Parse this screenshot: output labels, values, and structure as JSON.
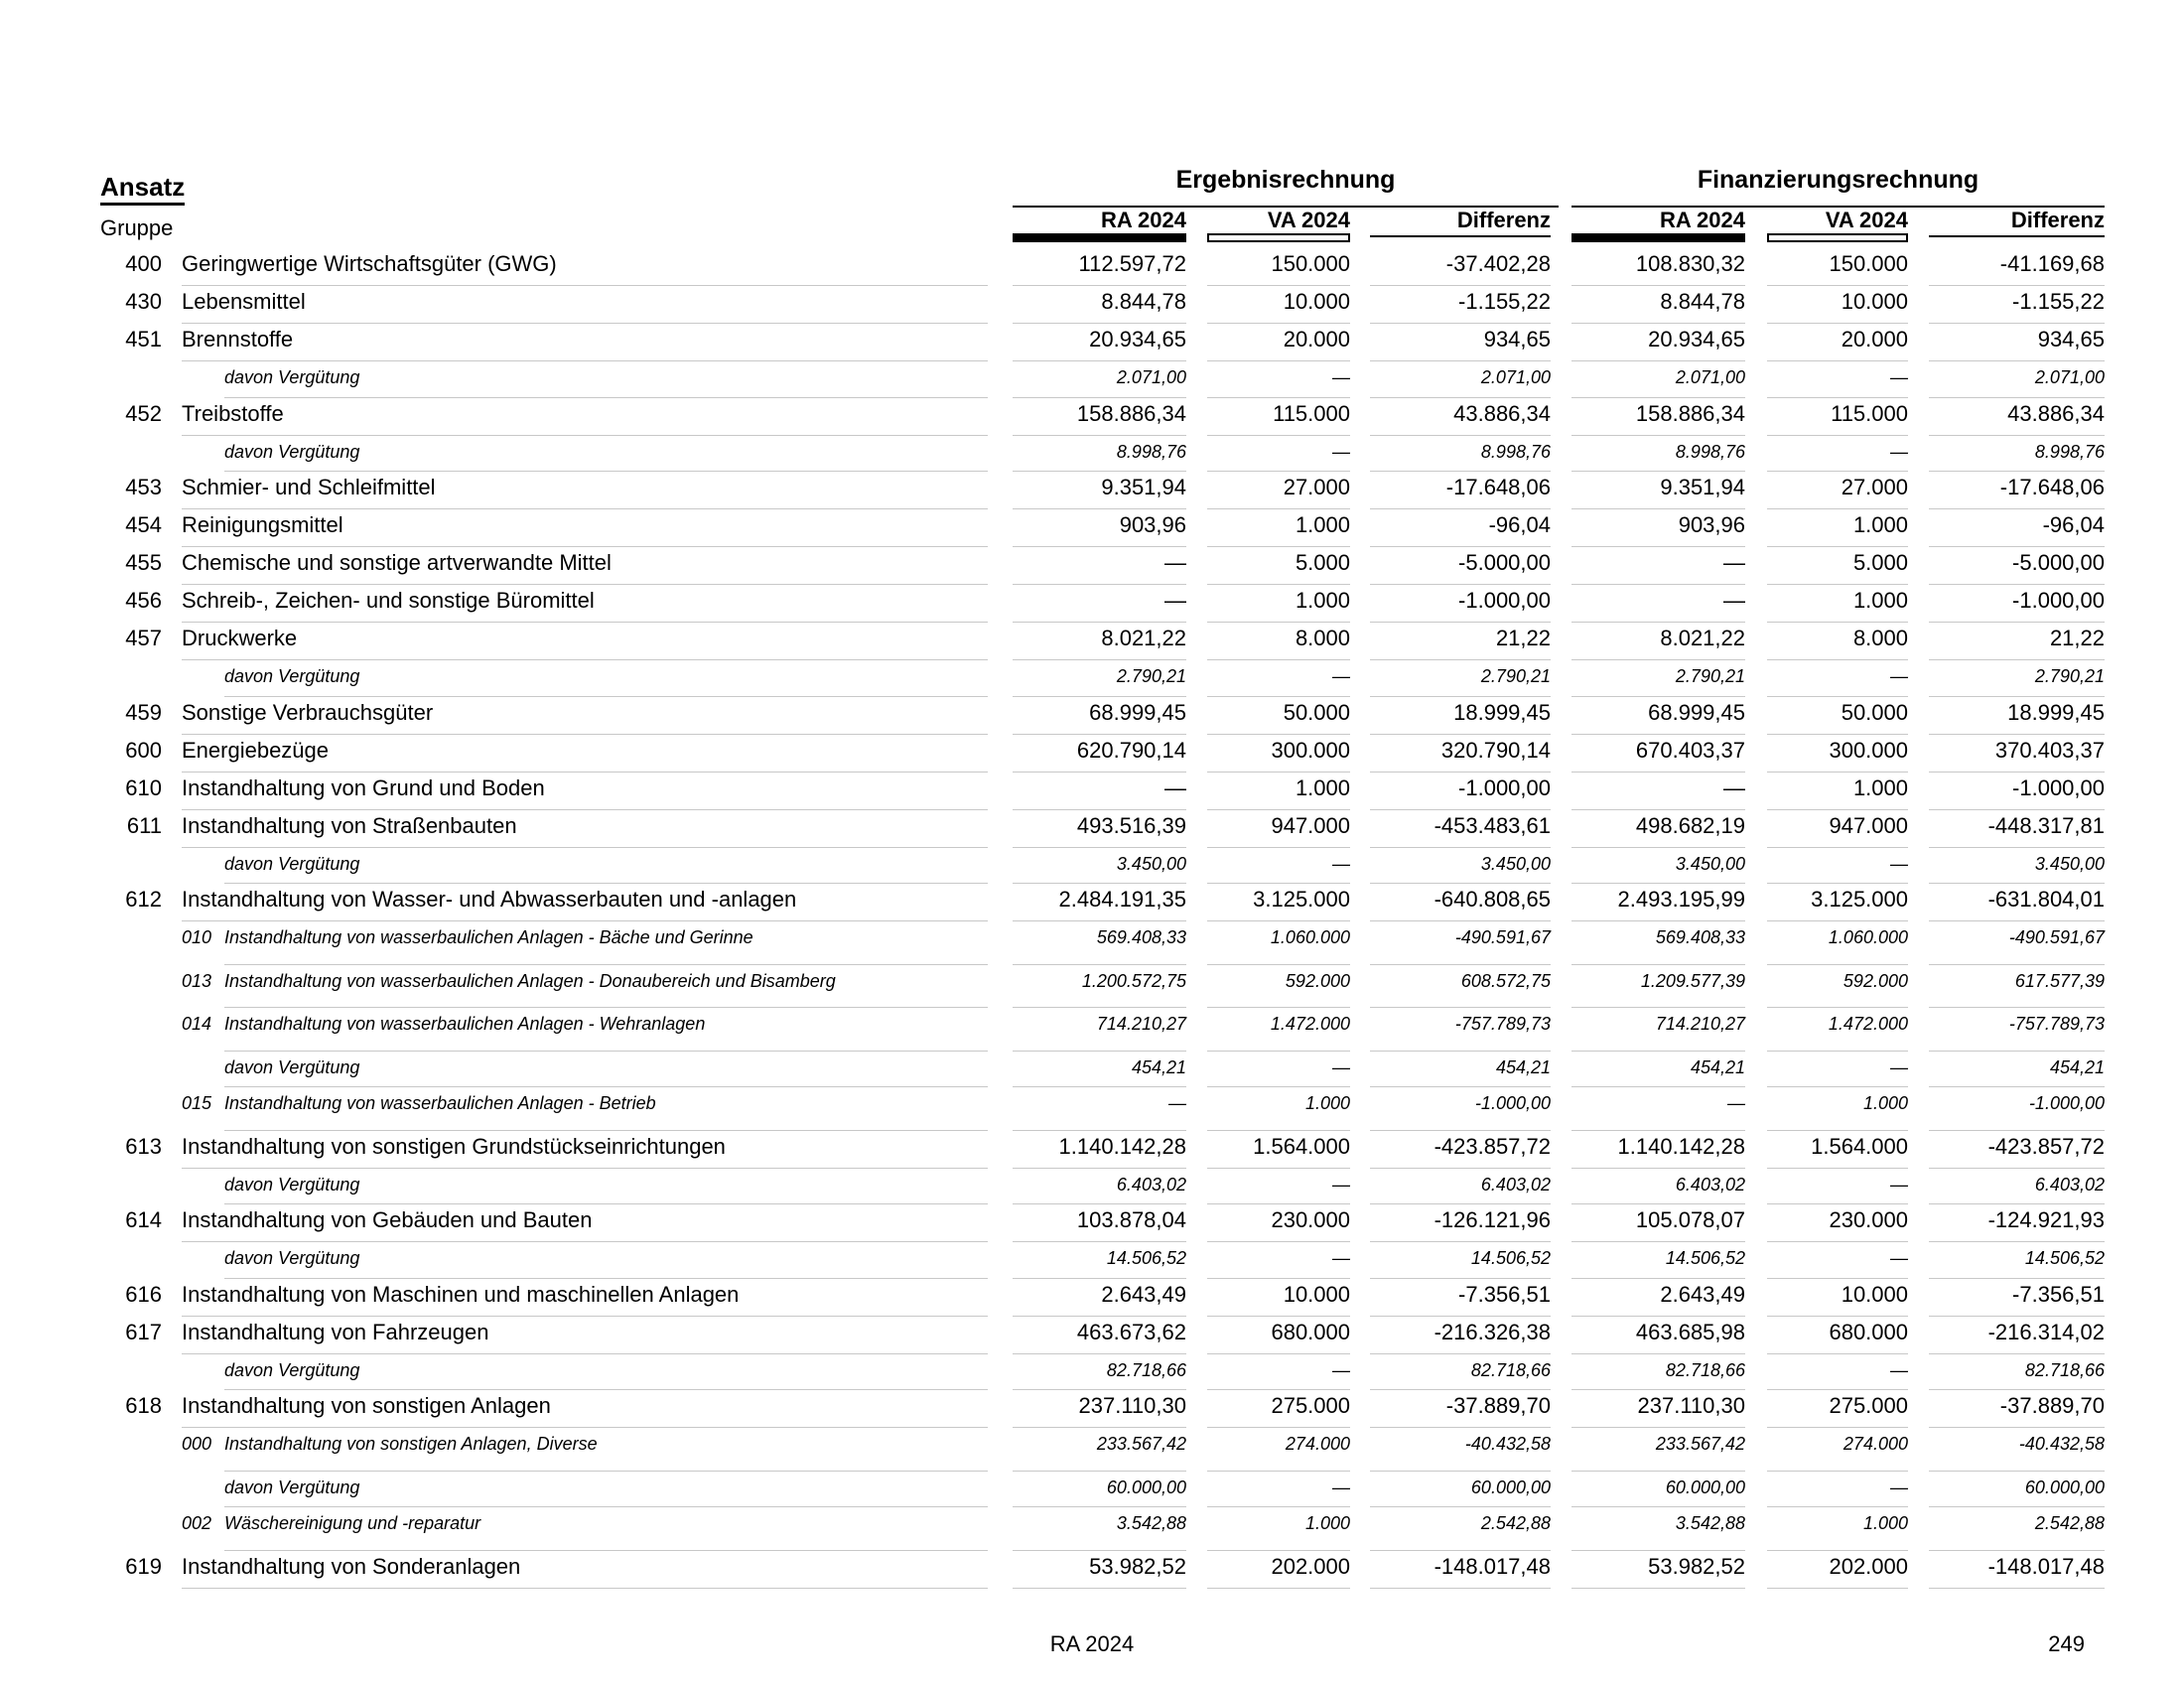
{
  "header": {
    "ansatz": "Ansatz",
    "gruppe": "Gruppe",
    "section_ergebnis": "Ergebnisrechnung",
    "section_finanz": "Finanzierungsrechnung",
    "columns": [
      "RA 2024",
      "VA 2024",
      "Differenz",
      "RA 2024",
      "VA 2024",
      "Differenz"
    ]
  },
  "rows": [
    {
      "kind": "main",
      "code": "400",
      "label": "Geringwertige Wirtschaftsgüter (GWG)",
      "values": [
        "112.597,72",
        "150.000",
        "-37.402,28",
        "108.830,32",
        "150.000",
        "-41.169,68"
      ]
    },
    {
      "kind": "main",
      "code": "430",
      "label": "Lebensmittel",
      "values": [
        "8.844,78",
        "10.000",
        "-1.155,22",
        "8.844,78",
        "10.000",
        "-1.155,22"
      ]
    },
    {
      "kind": "main",
      "code": "451",
      "label": "Brennstoffe",
      "values": [
        "20.934,65",
        "20.000",
        "934,65",
        "20.934,65",
        "20.000",
        "934,65"
      ]
    },
    {
      "kind": "davon",
      "code": "",
      "label": "davon Vergütung",
      "values": [
        "2.071,00",
        "—",
        "2.071,00",
        "2.071,00",
        "—",
        "2.071,00"
      ]
    },
    {
      "kind": "main",
      "code": "452",
      "label": "Treibstoffe",
      "values": [
        "158.886,34",
        "115.000",
        "43.886,34",
        "158.886,34",
        "115.000",
        "43.886,34"
      ]
    },
    {
      "kind": "davon",
      "code": "",
      "label": "davon Vergütung",
      "values": [
        "8.998,76",
        "—",
        "8.998,76",
        "8.998,76",
        "—",
        "8.998,76"
      ]
    },
    {
      "kind": "main",
      "code": "453",
      "label": "Schmier- und Schleifmittel",
      "values": [
        "9.351,94",
        "27.000",
        "-17.648,06",
        "9.351,94",
        "27.000",
        "-17.648,06"
      ]
    },
    {
      "kind": "main",
      "code": "454",
      "label": "Reinigungsmittel",
      "values": [
        "903,96",
        "1.000",
        "-96,04",
        "903,96",
        "1.000",
        "-96,04"
      ]
    },
    {
      "kind": "main",
      "code": "455",
      "label": "Chemische und sonstige artverwandte Mittel",
      "values": [
        "—",
        "5.000",
        "-5.000,00",
        "—",
        "5.000",
        "-5.000,00"
      ]
    },
    {
      "kind": "main",
      "code": "456",
      "label": "Schreib-, Zeichen- und sonstige Büromittel",
      "values": [
        "—",
        "1.000",
        "-1.000,00",
        "—",
        "1.000",
        "-1.000,00"
      ]
    },
    {
      "kind": "main",
      "code": "457",
      "label": "Druckwerke",
      "values": [
        "8.021,22",
        "8.000",
        "21,22",
        "8.021,22",
        "8.000",
        "21,22"
      ]
    },
    {
      "kind": "davon",
      "code": "",
      "label": "davon Vergütung",
      "values": [
        "2.790,21",
        "—",
        "2.790,21",
        "2.790,21",
        "—",
        "2.790,21"
      ]
    },
    {
      "kind": "main",
      "code": "459",
      "label": "Sonstige Verbrauchsgüter",
      "values": [
        "68.999,45",
        "50.000",
        "18.999,45",
        "68.999,45",
        "50.000",
        "18.999,45"
      ]
    },
    {
      "kind": "main",
      "code": "600",
      "label": "Energiebezüge",
      "values": [
        "620.790,14",
        "300.000",
        "320.790,14",
        "670.403,37",
        "300.000",
        "370.403,37"
      ]
    },
    {
      "kind": "main",
      "code": "610",
      "label": "Instandhaltung von Grund und Boden",
      "values": [
        "—",
        "1.000",
        "-1.000,00",
        "—",
        "1.000",
        "-1.000,00"
      ]
    },
    {
      "kind": "main",
      "code": "611",
      "label": "Instandhaltung von Straßenbauten",
      "values": [
        "493.516,39",
        "947.000",
        "-453.483,61",
        "498.682,19",
        "947.000",
        "-448.317,81"
      ]
    },
    {
      "kind": "davon",
      "code": "",
      "label": "davon Vergütung",
      "values": [
        "3.450,00",
        "—",
        "3.450,00",
        "3.450,00",
        "—",
        "3.450,00"
      ]
    },
    {
      "kind": "main",
      "code": "612",
      "label": "Instandhaltung von Wasser- und Abwasserbauten und -anlagen",
      "values": [
        "2.484.191,35",
        "3.125.000",
        "-640.808,65",
        "2.493.195,99",
        "3.125.000",
        "-631.804,01"
      ]
    },
    {
      "kind": "sub",
      "code": "010",
      "label": "Instandhaltung von wasserbaulichen Anlagen - Bäche und Gerinne",
      "values": [
        "569.408,33",
        "1.060.000",
        "-490.591,67",
        "569.408,33",
        "1.060.000",
        "-490.591,67"
      ]
    },
    {
      "kind": "sub",
      "code": "013",
      "label": "Instandhaltung von wasserbaulichen Anlagen - Donaubereich und Bisamberg",
      "values": [
        "1.200.572,75",
        "592.000",
        "608.572,75",
        "1.209.577,39",
        "592.000",
        "617.577,39"
      ]
    },
    {
      "kind": "sub",
      "code": "014",
      "label": "Instandhaltung von wasserbaulichen Anlagen - Wehranlagen",
      "values": [
        "714.210,27",
        "1.472.000",
        "-757.789,73",
        "714.210,27",
        "1.472.000",
        "-757.789,73"
      ]
    },
    {
      "kind": "davon",
      "code": "",
      "label": "davon Vergütung",
      "values": [
        "454,21",
        "—",
        "454,21",
        "454,21",
        "—",
        "454,21"
      ]
    },
    {
      "kind": "sub",
      "code": "015",
      "label": "Instandhaltung von wasserbaulichen Anlagen - Betrieb",
      "values": [
        "—",
        "1.000",
        "-1.000,00",
        "—",
        "1.000",
        "-1.000,00"
      ]
    },
    {
      "kind": "main",
      "code": "613",
      "label": "Instandhaltung von sonstigen Grundstückseinrichtungen",
      "values": [
        "1.140.142,28",
        "1.564.000",
        "-423.857,72",
        "1.140.142,28",
        "1.564.000",
        "-423.857,72"
      ]
    },
    {
      "kind": "davon",
      "code": "",
      "label": "davon Vergütung",
      "values": [
        "6.403,02",
        "—",
        "6.403,02",
        "6.403,02",
        "—",
        "6.403,02"
      ]
    },
    {
      "kind": "main",
      "code": "614",
      "label": "Instandhaltung von Gebäuden und Bauten",
      "values": [
        "103.878,04",
        "230.000",
        "-126.121,96",
        "105.078,07",
        "230.000",
        "-124.921,93"
      ]
    },
    {
      "kind": "davon",
      "code": "",
      "label": "davon Vergütung",
      "values": [
        "14.506,52",
        "—",
        "14.506,52",
        "14.506,52",
        "—",
        "14.506,52"
      ]
    },
    {
      "kind": "main",
      "code": "616",
      "label": "Instandhaltung von Maschinen und maschinellen Anlagen",
      "values": [
        "2.643,49",
        "10.000",
        "-7.356,51",
        "2.643,49",
        "10.000",
        "-7.356,51"
      ]
    },
    {
      "kind": "main",
      "code": "617",
      "label": "Instandhaltung von Fahrzeugen",
      "values": [
        "463.673,62",
        "680.000",
        "-216.326,38",
        "463.685,98",
        "680.000",
        "-216.314,02"
      ]
    },
    {
      "kind": "davon",
      "code": "",
      "label": "davon Vergütung",
      "values": [
        "82.718,66",
        "—",
        "82.718,66",
        "82.718,66",
        "—",
        "82.718,66"
      ]
    },
    {
      "kind": "main",
      "code": "618",
      "label": "Instandhaltung von sonstigen Anlagen",
      "values": [
        "237.110,30",
        "275.000",
        "-37.889,70",
        "237.110,30",
        "275.000",
        "-37.889,70"
      ]
    },
    {
      "kind": "sub",
      "code": "000",
      "label": "Instandhaltung von sonstigen Anlagen, Diverse",
      "values": [
        "233.567,42",
        "274.000",
        "-40.432,58",
        "233.567,42",
        "274.000",
        "-40.432,58"
      ]
    },
    {
      "kind": "davon",
      "code": "",
      "label": "davon Vergütung",
      "values": [
        "60.000,00",
        "—",
        "60.000,00",
        "60.000,00",
        "—",
        "60.000,00"
      ]
    },
    {
      "kind": "sub",
      "code": "002",
      "label": "Wäschereinigung und -reparatur",
      "values": [
        "3.542,88",
        "1.000",
        "2.542,88",
        "3.542,88",
        "1.000",
        "2.542,88"
      ]
    },
    {
      "kind": "main",
      "code": "619",
      "label": "Instandhaltung von Sonderanlagen",
      "values": [
        "53.982,52",
        "202.000",
        "-148.017,48",
        "53.982,52",
        "202.000",
        "-148.017,48"
      ]
    }
  ],
  "footer": {
    "center": "RA 2024",
    "page": "249"
  }
}
